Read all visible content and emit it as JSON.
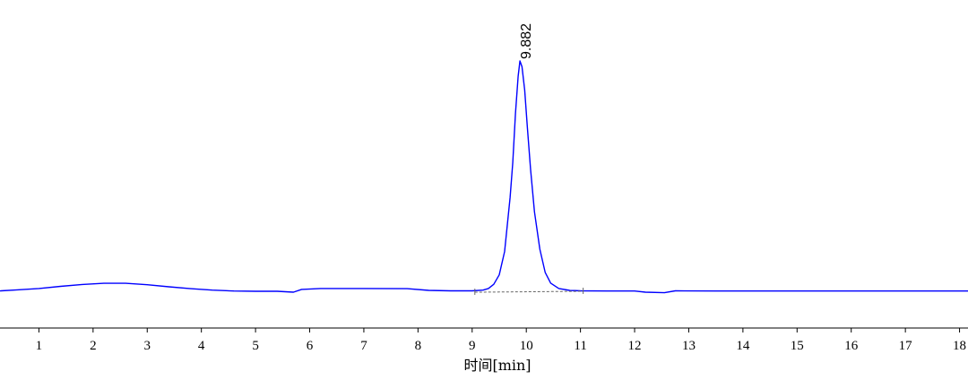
{
  "chart_data": {
    "type": "line",
    "title": "",
    "xlabel": "时间[min]",
    "ylabel": "",
    "xlim": [
      0,
      18.2
    ],
    "ylim": [
      0,
      1
    ],
    "grid": false,
    "x_ticks": [
      1,
      2,
      3,
      4,
      5,
      6,
      7,
      8,
      9,
      10,
      11,
      12,
      13,
      14,
      15,
      16,
      17,
      18
    ],
    "series": [
      {
        "color": "#0000ff",
        "points": [
          [
            0,
            0.0
          ],
          [
            0.3,
            0.002
          ],
          [
            0.6,
            0.006
          ],
          [
            1.0,
            0.012
          ],
          [
            1.4,
            0.021
          ],
          [
            1.8,
            0.029
          ],
          [
            2.2,
            0.034
          ],
          [
            2.6,
            0.034
          ],
          [
            3.0,
            0.028
          ],
          [
            3.4,
            0.019
          ],
          [
            3.8,
            0.011
          ],
          [
            4.2,
            0.005
          ],
          [
            4.6,
            0.001
          ],
          [
            5.0,
            0.0
          ],
          [
            5.4,
            0.0
          ],
          [
            5.7,
            -0.004
          ],
          [
            5.85,
            0.008
          ],
          [
            6.2,
            0.012
          ],
          [
            7.0,
            0.012
          ],
          [
            7.8,
            0.011
          ],
          [
            8.2,
            0.004
          ],
          [
            8.6,
            0.002
          ],
          [
            9.0,
            0.002
          ],
          [
            9.2,
            0.005
          ],
          [
            9.3,
            0.012
          ],
          [
            9.4,
            0.03
          ],
          [
            9.5,
            0.07
          ],
          [
            9.6,
            0.17
          ],
          [
            9.7,
            0.4
          ],
          [
            9.75,
            0.55
          ],
          [
            9.8,
            0.76
          ],
          [
            9.85,
            0.92
          ],
          [
            9.882,
            0.985
          ],
          [
            9.92,
            0.96
          ],
          [
            9.97,
            0.86
          ],
          [
            10.02,
            0.7
          ],
          [
            10.08,
            0.52
          ],
          [
            10.15,
            0.34
          ],
          [
            10.25,
            0.18
          ],
          [
            10.35,
            0.08
          ],
          [
            10.45,
            0.035
          ],
          [
            10.6,
            0.012
          ],
          [
            10.8,
            0.004
          ],
          [
            11.0,
            0.002
          ],
          [
            11.5,
            0.001
          ],
          [
            12.0,
            0.001
          ],
          [
            12.2,
            -0.004
          ],
          [
            12.55,
            -0.006
          ],
          [
            12.75,
            0.002
          ],
          [
            13.5,
            0.001
          ],
          [
            14.5,
            0.001
          ],
          [
            16.0,
            0.001
          ],
          [
            17.0,
            0.001
          ],
          [
            18.2,
            0.001
          ]
        ]
      }
    ],
    "baseline": {
      "from": [
        9.05,
        -0.004
      ],
      "to": [
        11.05,
        0.0
      ],
      "style": "dashed",
      "color": "#666666"
    },
    "peaks": [
      {
        "x": 9.882,
        "y": 0.985,
        "label": "9.882"
      }
    ]
  }
}
